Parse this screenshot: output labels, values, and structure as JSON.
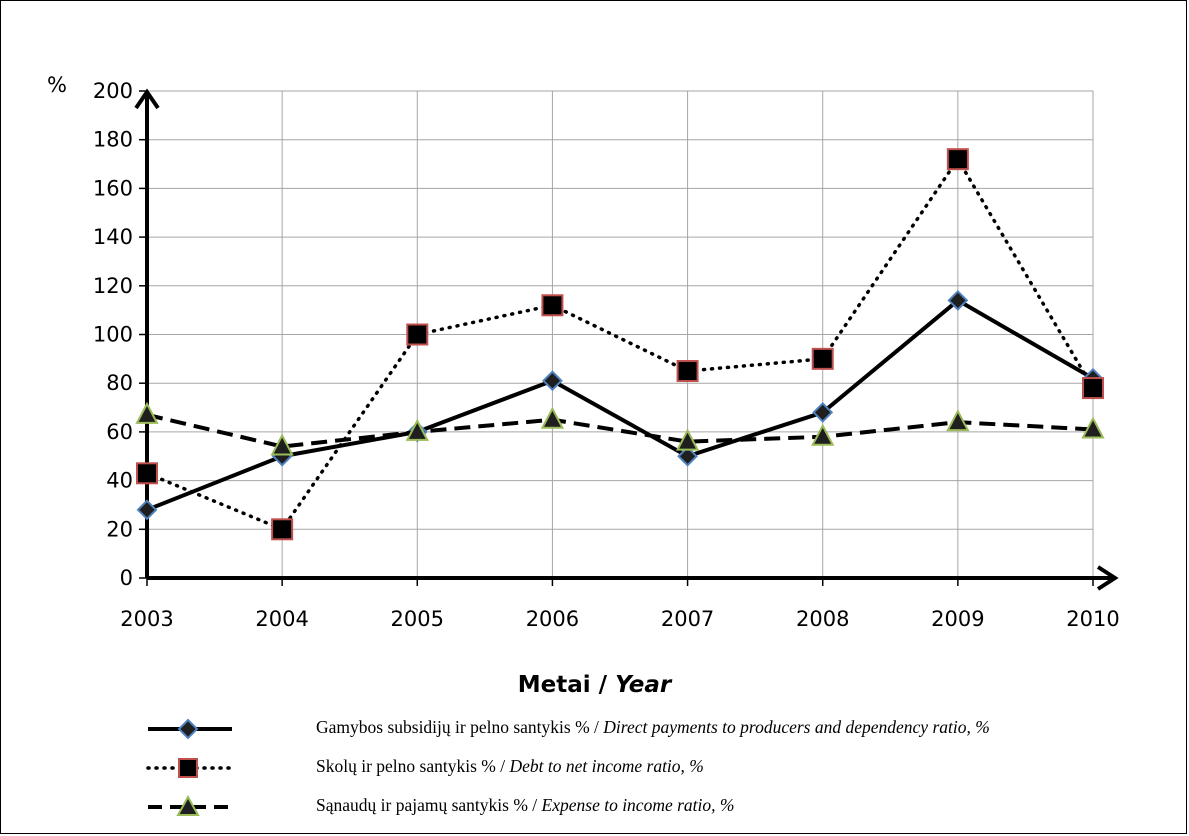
{
  "chart_data": {
    "type": "line",
    "x": [
      "2003",
      "2004",
      "2005",
      "2006",
      "2007",
      "2008",
      "2009",
      "2010"
    ],
    "xlabel_lt": "Metai",
    "xlabel_en": "Year",
    "xlabel_sep": " / ",
    "ylabel": "%",
    "ylim": [
      0,
      200
    ],
    "yticks": [
      0,
      20,
      40,
      60,
      80,
      100,
      120,
      140,
      160,
      180,
      200
    ],
    "grid": true,
    "legend_position": "bottom",
    "series": [
      {
        "name_lt": "Gamybos subsidijų ir pelno santykis % / ",
        "name_en": "Direct payments to producers and dependency ratio, %",
        "values": [
          28,
          50,
          60,
          81,
          50,
          68,
          114,
          82
        ],
        "line_style": "solid",
        "marker": "diamond",
        "color": "#000000",
        "marker_color": "#1f1f1f",
        "marker_edge": "#4f81bd"
      },
      {
        "name_lt": "Skolų ir pelno santykis % / ",
        "name_en": "Debt to net income ratio, %",
        "values": [
          43,
          20,
          100,
          112,
          85,
          90,
          172,
          78
        ],
        "line_style": "dotted",
        "marker": "square",
        "color": "#000000",
        "marker_color": "#000000",
        "marker_edge": "#c0504d"
      },
      {
        "name_lt": "Sąnaudų ir pajamų santykis % / ",
        "name_en": "Expense to income ratio, %",
        "values": [
          67,
          54,
          60,
          65,
          56,
          58,
          64,
          61
        ],
        "line_style": "dashed",
        "marker": "triangle",
        "color": "#000000",
        "marker_color": "#1f1f1f",
        "marker_edge": "#9bbb59"
      }
    ]
  }
}
